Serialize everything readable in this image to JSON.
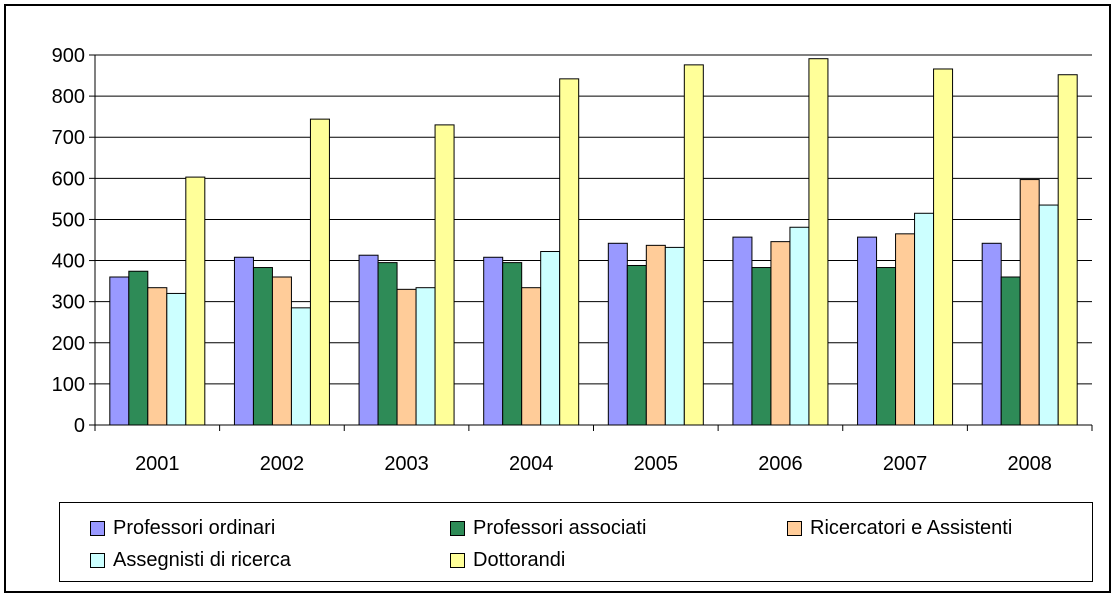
{
  "chart_data": {
    "type": "bar",
    "categories": [
      "2001",
      "2002",
      "2003",
      "2004",
      "2005",
      "2006",
      "2007",
      "2008"
    ],
    "series": [
      {
        "name": "Professori ordinari",
        "color": "#9999ff",
        "values": [
          360,
          408,
          413,
          408,
          442,
          457,
          457,
          442
        ]
      },
      {
        "name": "Professori associati",
        "color": "#2e8b57",
        "values": [
          374,
          383,
          395,
          395,
          388,
          383,
          383,
          360
        ]
      },
      {
        "name": "Ricercatori e Assistenti",
        "color": "#ffcc99",
        "values": [
          334,
          360,
          330,
          334,
          437,
          446,
          465,
          597
        ]
      },
      {
        "name": "Assegnisti di ricerca",
        "color": "#ccffff",
        "values": [
          320,
          285,
          334,
          422,
          432,
          481,
          515,
          535
        ]
      },
      {
        "name": "Dottorandi",
        "color": "#ffff99",
        "values": [
          603,
          744,
          730,
          842,
          876,
          891,
          866,
          852
        ]
      }
    ],
    "ylim": [
      0,
      900
    ],
    "yticks": [
      "0",
      "100",
      "200",
      "300",
      "400",
      "500",
      "600",
      "700",
      "800",
      "900"
    ],
    "grid": true,
    "legend": "bottom"
  }
}
